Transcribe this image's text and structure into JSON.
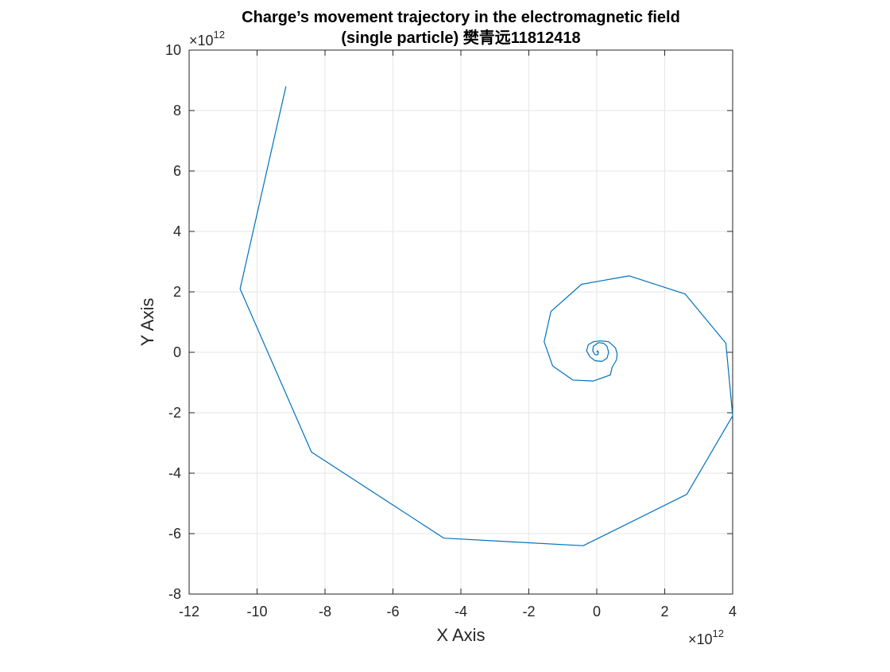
{
  "chart_data": {
    "type": "line",
    "title": "Charge’s movement trajectory in the electromagnetic field",
    "subtitle": "(single particle) 樊青远11812418",
    "xlabel": "X Axis",
    "ylabel": "Y Axis",
    "x_exponent_label": "×10",
    "x_exponent_power": "12",
    "y_exponent_label": "×10",
    "y_exponent_power": "12",
    "xlim": [
      -12,
      4
    ],
    "ylim": [
      -8,
      10
    ],
    "xticks": [
      -12,
      -10,
      -8,
      -6,
      -4,
      -2,
      0,
      2,
      4
    ],
    "yticks": [
      -8,
      -6,
      -4,
      -2,
      0,
      2,
      4,
      6,
      8,
      10
    ],
    "grid": true,
    "line_color": "#0072bd",
    "series": [
      {
        "x": [
          0.0,
          0.02,
          0.05,
          0.03,
          -0.05,
          -0.12,
          -0.1,
          0.05,
          0.2,
          0.3,
          0.35,
          0.3,
          0.15,
          -0.05,
          -0.2,
          -0.3,
          -0.25,
          -0.1,
          0.1,
          0.35,
          0.55,
          0.6,
          0.58,
          0.45,
          0.4,
          -0.1,
          -0.7,
          -1.3,
          -1.55,
          -1.35,
          -0.45,
          0.95,
          2.6,
          3.8,
          4.0,
          2.65,
          -0.4,
          -4.5,
          -8.4,
          -10.5,
          -9.15
        ],
        "y": [
          0.0,
          0.05,
          0.0,
          -0.08,
          -0.08,
          0.05,
          0.2,
          0.32,
          0.3,
          0.2,
          0.0,
          -0.2,
          -0.3,
          -0.28,
          -0.15,
          0.05,
          0.25,
          0.35,
          0.38,
          0.35,
          0.15,
          -0.05,
          -0.25,
          -0.5,
          -0.75,
          -0.95,
          -0.92,
          -0.45,
          0.35,
          1.35,
          2.25,
          2.53,
          1.93,
          0.3,
          -2.1,
          -4.7,
          -6.4,
          -6.15,
          -3.3,
          2.1,
          8.8
        ]
      }
    ]
  }
}
